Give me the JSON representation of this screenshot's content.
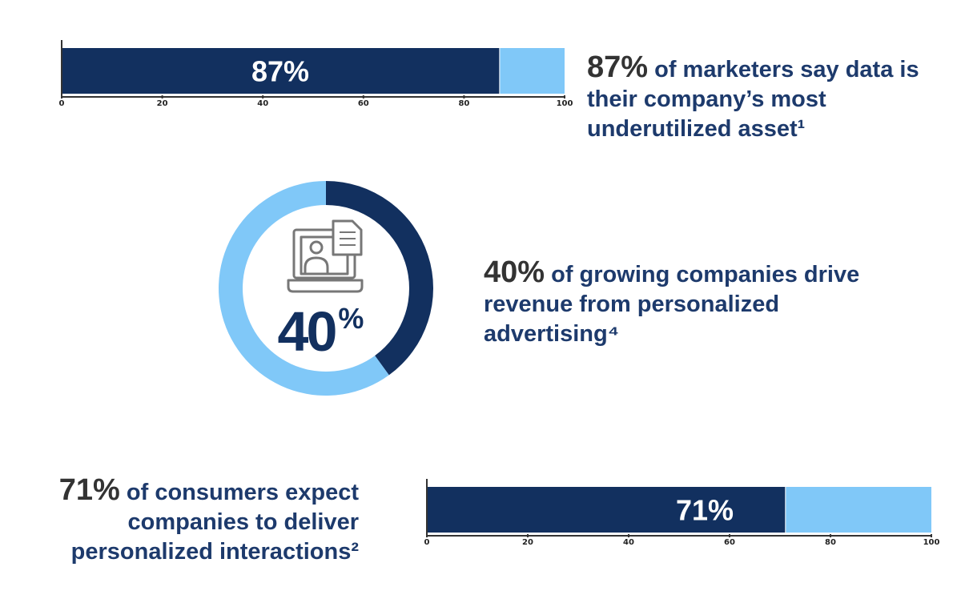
{
  "colors": {
    "filled": "#12305f",
    "remainder": "#80c8f8",
    "text": "#1d3a6c",
    "highlight": "#333333",
    "icon": "#777777"
  },
  "chart_data": [
    {
      "type": "bar",
      "orientation": "horizontal",
      "values": [
        87
      ],
      "max": 100,
      "data_label": "87%",
      "xlim": [
        0,
        100
      ],
      "xticks": [
        "0",
        "20",
        "40",
        "60",
        "80",
        "100"
      ]
    },
    {
      "type": "pie",
      "variant": "donut",
      "values": [
        40,
        60
      ],
      "center_label": "40%",
      "center_icon": "laptop-user-document-icon"
    },
    {
      "type": "bar",
      "orientation": "horizontal",
      "values": [
        71
      ],
      "max": 100,
      "data_label": "71%",
      "xlim": [
        0,
        100
      ],
      "xticks": [
        "0",
        "20",
        "40",
        "60",
        "80",
        "100"
      ]
    }
  ],
  "stats": [
    {
      "value": "87%",
      "text": " of marketers say data is their company’s most underutilized asset¹"
    },
    {
      "value": "40%",
      "text": " of growing companies drive revenue from personalized advertising⁴"
    },
    {
      "value": "71%",
      "text": " of consumers expect companies to deliver personalized interactions²"
    }
  ]
}
